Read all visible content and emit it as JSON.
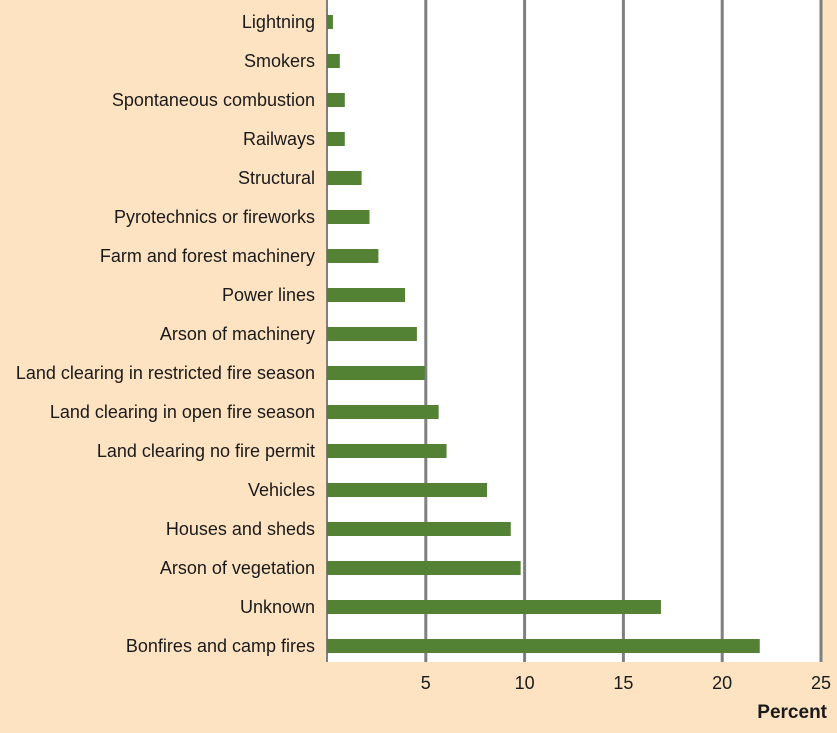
{
  "chart_data": {
    "type": "bar",
    "orientation": "horizontal",
    "categories": [
      "Lightning",
      "Smokers",
      "Spontaneous combustion",
      "Railways",
      "Structural",
      "Pyrotechnics or fireworks",
      "Farm and forest machinery",
      "Power lines",
      "Arson of machinery",
      "Land clearing in restricted fire season",
      "Land clearing in open fire season",
      "Land clearing no fire permit",
      "Vehicles",
      "Houses and sheds",
      "Arson of vegetation",
      "Unknown",
      "Bonfires and camp fires"
    ],
    "values": [
      0.3,
      0.65,
      0.9,
      0.9,
      1.75,
      2.15,
      2.6,
      3.95,
      4.55,
      4.95,
      5.65,
      6.05,
      8.1,
      9.3,
      9.8,
      16.9,
      21.9
    ],
    "xlabel": "Percent",
    "xlim": [
      0,
      25
    ],
    "xticks": [
      5,
      10,
      15,
      20,
      25
    ],
    "grid": "vertical",
    "bar_color": "#548235",
    "plot_background": "#ffffff",
    "page_background": "#fde3c2",
    "gridline_color": "#7f7f7f"
  }
}
